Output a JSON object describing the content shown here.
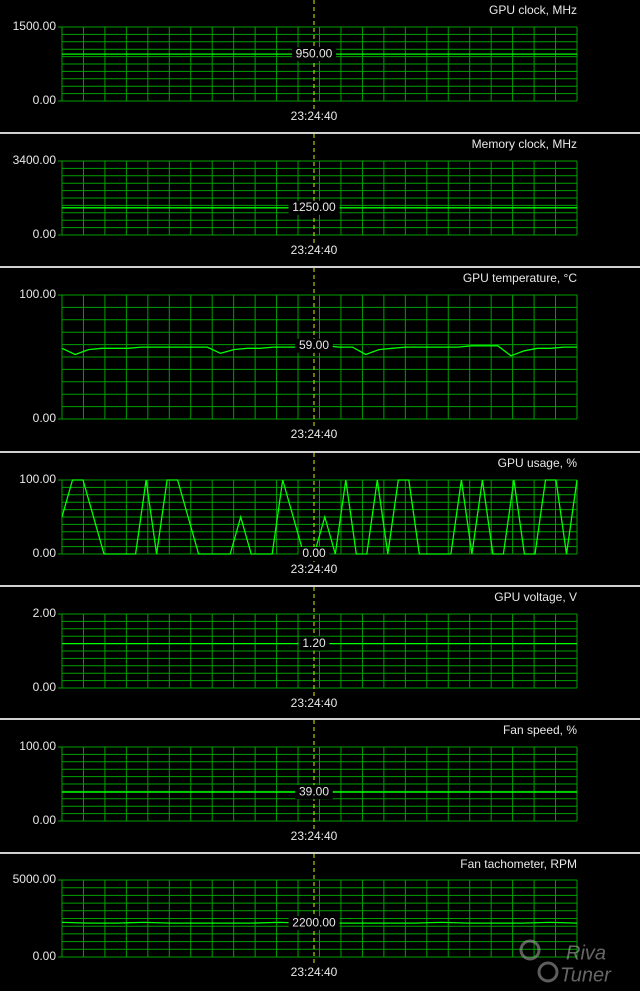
{
  "chart_data": [
    {
      "type": "line",
      "title": "GPU clock, MHz",
      "ylim": [
        0,
        1500
      ],
      "yticks": [
        {
          "value": 0,
          "label": "0.00"
        },
        {
          "value": 1500,
          "label": "1500.00"
        }
      ],
      "color": "#00ff00",
      "values": [
        950,
        950,
        950,
        950,
        950,
        950,
        950,
        950,
        950,
        950
      ],
      "cursor": {
        "time": "23:24:40",
        "value": 950,
        "label": "950.00"
      }
    },
    {
      "type": "line",
      "title": "Memory clock, MHz",
      "ylim": [
        0,
        3400
      ],
      "yticks": [
        {
          "value": 0,
          "label": "0.00"
        },
        {
          "value": 3400,
          "label": "3400.00"
        }
      ],
      "color": "#00ff00",
      "values": [
        1250,
        1250,
        1250,
        1250,
        1250,
        1250,
        1250,
        1250,
        1250,
        1250
      ],
      "cursor": {
        "time": "23:24:40",
        "value": 1250,
        "label": "1250.00"
      }
    },
    {
      "type": "line",
      "title": "GPU temperature, °C",
      "ylim": [
        0,
        100
      ],
      "yticks": [
        {
          "value": 0,
          "label": "0.00"
        },
        {
          "value": 100,
          "label": "100.00"
        }
      ],
      "color": "#00ff00",
      "values": [
        57,
        52,
        56,
        57,
        57,
        57,
        58,
        58,
        58,
        58,
        58,
        58,
        53,
        56,
        57,
        57,
        58,
        58,
        58,
        58,
        59,
        58,
        58,
        52,
        56,
        57,
        58,
        58,
        58,
        58,
        58,
        59,
        59,
        59,
        51,
        55,
        57,
        57,
        58,
        58
      ],
      "cursor": {
        "time": "23:24:40",
        "value": 59,
        "label": "59.00"
      }
    },
    {
      "type": "line",
      "title": "GPU usage, %",
      "ylim": [
        0,
        100
      ],
      "yticks": [
        {
          "value": 0,
          "label": "0.00"
        },
        {
          "value": 100,
          "label": "100.00"
        }
      ],
      "color": "#00ff00",
      "values": [
        50,
        100,
        100,
        50,
        0,
        0,
        0,
        0,
        100,
        0,
        100,
        100,
        50,
        0,
        0,
        0,
        0,
        50,
        0,
        0,
        0,
        100,
        50,
        0,
        0,
        50,
        0,
        100,
        0,
        0,
        100,
        0,
        100,
        100,
        0,
        0,
        0,
        0,
        100,
        0,
        100,
        0,
        0,
        100,
        0,
        0,
        100,
        100,
        0,
        100
      ],
      "cursor": {
        "time": "23:24:40",
        "value": 0,
        "label": "0.00"
      }
    },
    {
      "type": "line",
      "title": "GPU voltage, V",
      "ylim": [
        0,
        2
      ],
      "yticks": [
        {
          "value": 0,
          "label": "0.00"
        },
        {
          "value": 2,
          "label": "2.00"
        }
      ],
      "color": "#00ff00",
      "values": [
        1.2,
        1.2,
        1.2,
        1.2,
        1.2,
        1.2,
        1.2,
        1.2,
        1.2,
        1.2
      ],
      "cursor": {
        "time": "23:24:40",
        "value": 1.2,
        "label": "1.20"
      }
    },
    {
      "type": "line",
      "title": "Fan speed, %",
      "ylim": [
        0,
        100
      ],
      "yticks": [
        {
          "value": 0,
          "label": "0.00"
        },
        {
          "value": 100,
          "label": "100.00"
        }
      ],
      "color": "#00ff00",
      "values": [
        39,
        39,
        39,
        39,
        39,
        39,
        39,
        39,
        39,
        39
      ],
      "cursor": {
        "time": "23:24:40",
        "value": 39,
        "label": "39.00"
      }
    },
    {
      "type": "line",
      "title": "Fan tachometer, RPM",
      "ylim": [
        0,
        5000
      ],
      "yticks": [
        {
          "value": 0,
          "label": "0.00"
        },
        {
          "value": 5000,
          "label": "5000.00"
        }
      ],
      "color": "#00ff00",
      "values": [
        2250,
        2200,
        2200,
        2250,
        2200,
        2200,
        2200,
        2200,
        2250,
        2200,
        2200,
        2200,
        2200,
        2200,
        2250,
        2200,
        2200,
        2200,
        2250,
        2200
      ],
      "cursor": {
        "time": "23:24:40",
        "value": 2200,
        "label": "2200.00"
      }
    }
  ],
  "watermark": [
    "Riva",
    "Tuner"
  ]
}
